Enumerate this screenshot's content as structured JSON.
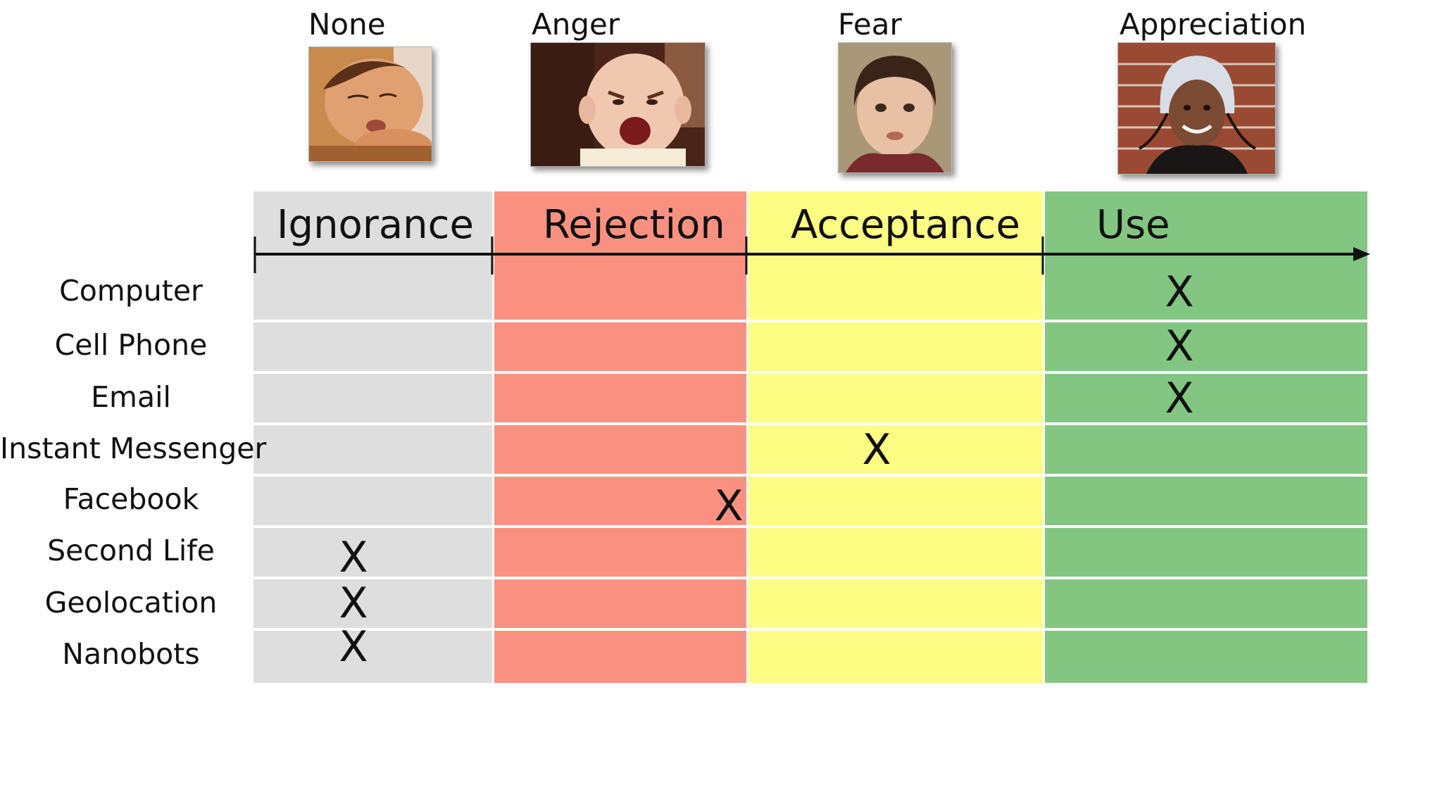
{
  "emotions": {
    "none": "None",
    "anger": "Anger",
    "fear": "Fear",
    "appreciation": "Appreciation"
  },
  "stages": {
    "ignorance": "Ignorance",
    "rejection": "Rejection",
    "acceptance": "Acceptance",
    "use": "Use"
  },
  "colors": {
    "ignorance": "#dedede",
    "rejection": "#fa9180",
    "acceptance": "#fdfd84",
    "use": "#82c682"
  },
  "mark_symbol": "X",
  "rows": [
    {
      "label": "Computer",
      "stage": "Use"
    },
    {
      "label": "Cell Phone",
      "stage": "Use"
    },
    {
      "label": "Email",
      "stage": "Use"
    },
    {
      "label": "Instant Messenger",
      "stage": "Acceptance"
    },
    {
      "label": "Facebook",
      "stage": "Rejection"
    },
    {
      "label": "Second Life",
      "stage": "Ignorance"
    },
    {
      "label": "Geolocation",
      "stage": "Ignorance"
    },
    {
      "label": "Nanobots",
      "stage": "Ignorance"
    }
  ]
}
